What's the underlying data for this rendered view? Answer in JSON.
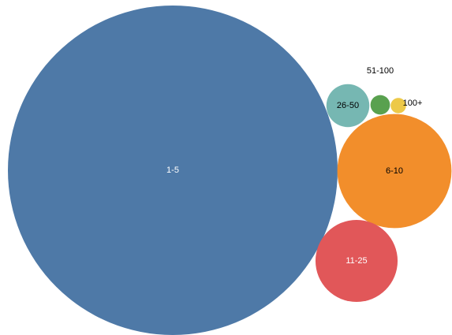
{
  "chart_data": {
    "type": "bubble",
    "categories": [
      "1-5",
      "6-10",
      "11-25",
      "26-50",
      "51-100",
      "100+"
    ],
    "values": [
      100,
      12,
      6.2,
      1.7,
      0.35,
      0.22
    ],
    "colors": [
      "#4e79a7",
      "#f28e2b",
      "#e15759",
      "#76b7b2",
      "#59a14f",
      "#edc948"
    ],
    "label_colors": [
      "#ffffff",
      "#000000",
      "#ffffff",
      "#000000",
      "#000000",
      "#000000"
    ],
    "title": "",
    "legend": "none"
  }
}
